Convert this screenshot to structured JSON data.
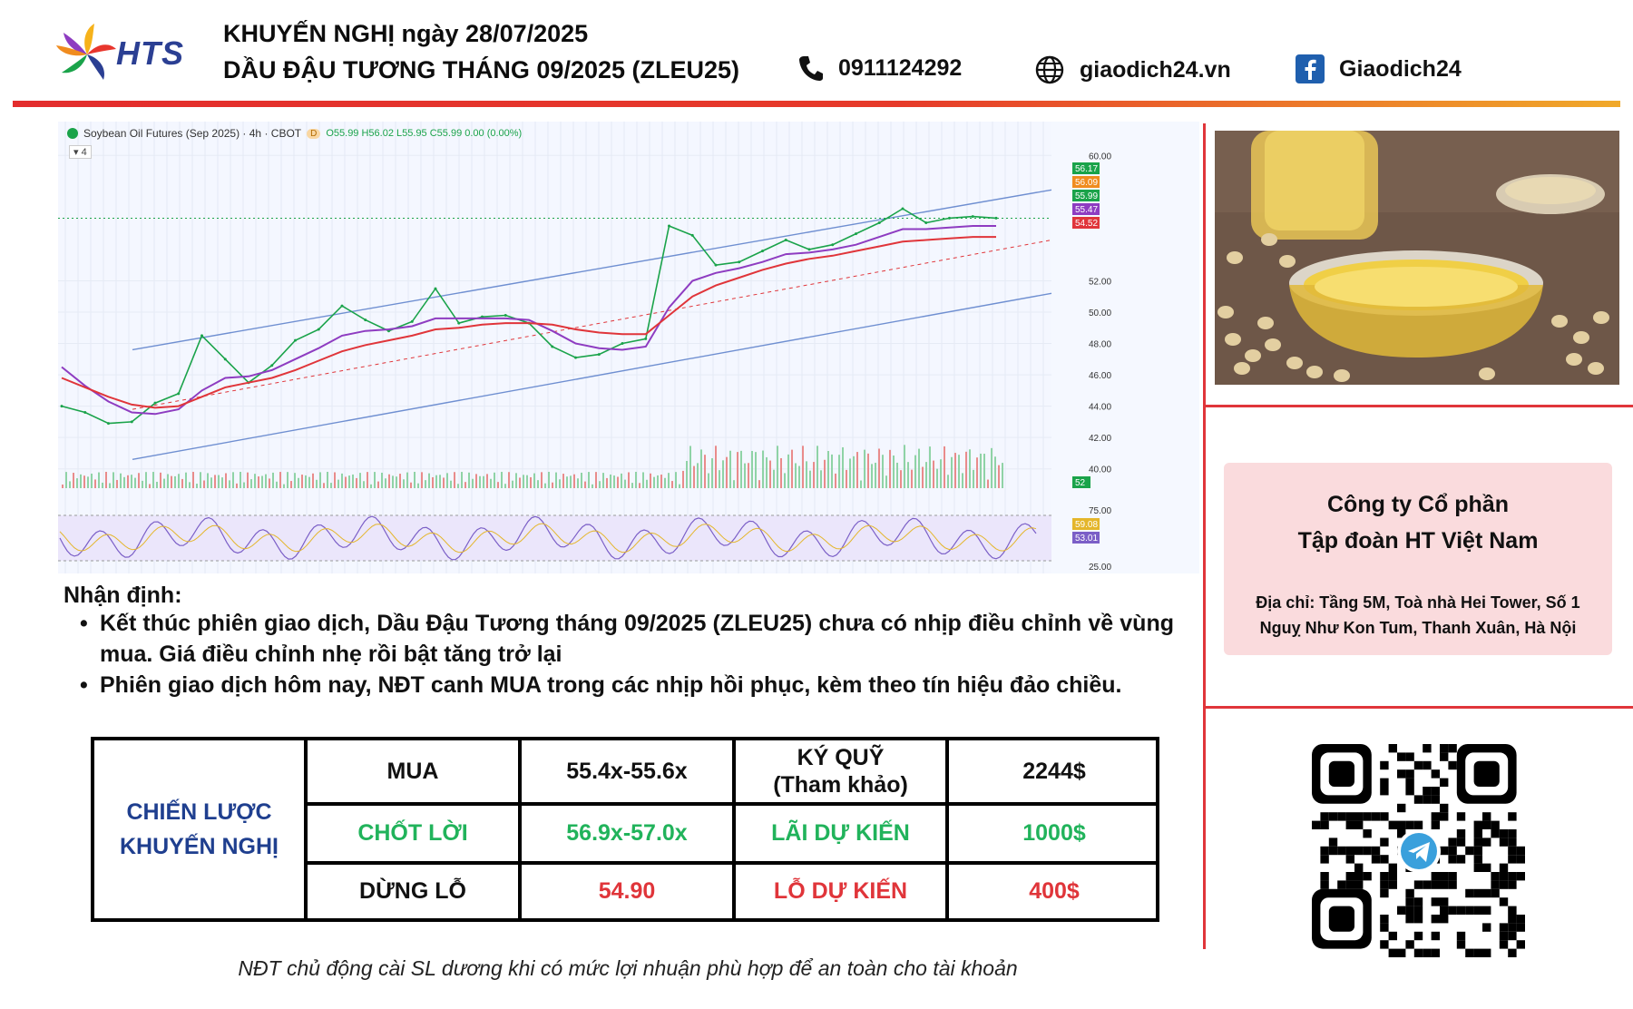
{
  "header": {
    "logo_text": "HTS",
    "title_line1": "KHUYẾN NGHỊ ngày 28/07/2025",
    "title_line2": "DẦU ĐẬU TƯƠNG THÁNG 09/2025 (ZLEU25)",
    "phone": "0911124292",
    "website": "giaodich24.vn",
    "facebook": "Giaodich24"
  },
  "chart": {
    "header_title": "Soybean Oil Futures (Sep 2025) · 4h · CBOT",
    "badge": "D",
    "ohlc": "O55.99 H56.02 L55.95 C55.99 0.00 (0.00%)",
    "sub_label": "4",
    "price_tags": [
      {
        "value": "56.17",
        "color": "#1aa34a"
      },
      {
        "value": "56.09",
        "color": "#f08c1f"
      },
      {
        "value": "55.99",
        "color": "#1aa34a"
      },
      {
        "value": "55.47",
        "color": "#8e3cc1"
      },
      {
        "value": "54.52",
        "color": "#e0353a"
      }
    ],
    "volume_tag": "52",
    "rsi_tags": [
      {
        "value": "59.08",
        "color": "#e4b62b"
      },
      {
        "value": "53.01",
        "color": "#7b5fc7"
      }
    ]
  },
  "chart_data": {
    "type": "line",
    "title": "Soybean Oil Futures (Sep 2025) · 4h · CBOT",
    "y_ticks": [
      "60.00",
      "52.00",
      "50.00",
      "48.00",
      "46.00",
      "44.00",
      "42.00",
      "40.00"
    ],
    "rsi_ticks": [
      "75.00",
      "25.00"
    ],
    "ylim": [
      39,
      61
    ],
    "series": [
      {
        "values": [
          44.0,
          43.6,
          42.9,
          43.0,
          44.2,
          44.8,
          48.5,
          47.0,
          45.5,
          46.6,
          48.2,
          48.9,
          50.4,
          49.5,
          48.8,
          49.4,
          51.5,
          49.3,
          49.7,
          49.8,
          49.3,
          47.8,
          47.1,
          47.3,
          48.0,
          48.3,
          55.5,
          54.9,
          53.0,
          53.2,
          53.9,
          54.6,
          54.0,
          54.3,
          55.0,
          55.7,
          56.6,
          55.7,
          56.0,
          56.1,
          56.0
        ],
        "color": "#1aa34a"
      },
      {
        "values": [
          46.5,
          45.3,
          44.3,
          43.6,
          43.5,
          43.8,
          45.0,
          45.8,
          45.9,
          46.3,
          47.0,
          47.7,
          48.5,
          48.8,
          48.9,
          49.1,
          49.6,
          49.6,
          49.6,
          49.6,
          49.5,
          48.8,
          48.0,
          47.7,
          47.6,
          47.8,
          50.3,
          52.0,
          52.5,
          52.8,
          53.2,
          53.7,
          53.8,
          54.0,
          54.3,
          54.8,
          55.3,
          55.3,
          55.4,
          55.5,
          55.5
        ],
        "color": "#8e3cc1"
      },
      {
        "values": [
          45.8,
          45.2,
          44.6,
          44.1,
          43.9,
          44.0,
          44.6,
          45.2,
          45.5,
          45.8,
          46.3,
          46.9,
          47.5,
          47.9,
          48.2,
          48.5,
          48.9,
          49.0,
          49.2,
          49.3,
          49.3,
          49.2,
          48.9,
          48.7,
          48.6,
          48.6,
          49.8,
          51.0,
          51.7,
          52.2,
          52.7,
          53.1,
          53.4,
          53.6,
          53.9,
          54.2,
          54.5,
          54.6,
          54.7,
          54.8,
          54.8
        ],
        "color": "#e0353a"
      }
    ]
  },
  "photo_label": "soybean-oil-photo",
  "company": {
    "name_line1": "Công ty Cổ phần",
    "name_line2": "Tập đoàn HT Việt Nam",
    "address_line1": "Địa chỉ: Tầng 5M, Toà nhà Hei Tower, Số 1",
    "address_line2": "Nguỵ Như Kon Tum, Thanh Xuân, Hà Nội"
  },
  "analysis": {
    "title": "Nhận định:",
    "bullets": [
      "Kết thúc phiên giao dịch, Dầu Đậu Tương tháng 09/2025 (ZLEU25) chưa có nhịp điều chỉnh về vùng mua. Giá điều chỉnh nhẹ rồi bật tăng trở lại",
      "Phiên giao dịch hôm nay, NĐT canh MUA trong các nhịp hồi phục, kèm theo tín hiệu đảo chiều."
    ]
  },
  "strategy": {
    "label_line1": "CHIẾN LƯỢC",
    "label_line2": "KHUYẾN NGHỊ",
    "row1": {
      "c1": "MUA",
      "c2": "55.4x-55.6x",
      "c3_line1": "KÝ QUỸ",
      "c3_line2": "(Tham khảo)",
      "c4": "2244$"
    },
    "row2": {
      "c1": "CHỐT LỜI",
      "c2": "56.9x-57.0x",
      "c3": "LÃI DỰ KIẾN",
      "c4": "1000$"
    },
    "row3": {
      "c1": "DỪNG LỖ",
      "c2": "54.90",
      "c3": "LỖ DỰ KIẾN",
      "c4": "400$"
    }
  },
  "footer_note": "NĐT chủ động cài SL dương khi có mức lợi nhuận phù hợp để an toàn cho tài khoản"
}
